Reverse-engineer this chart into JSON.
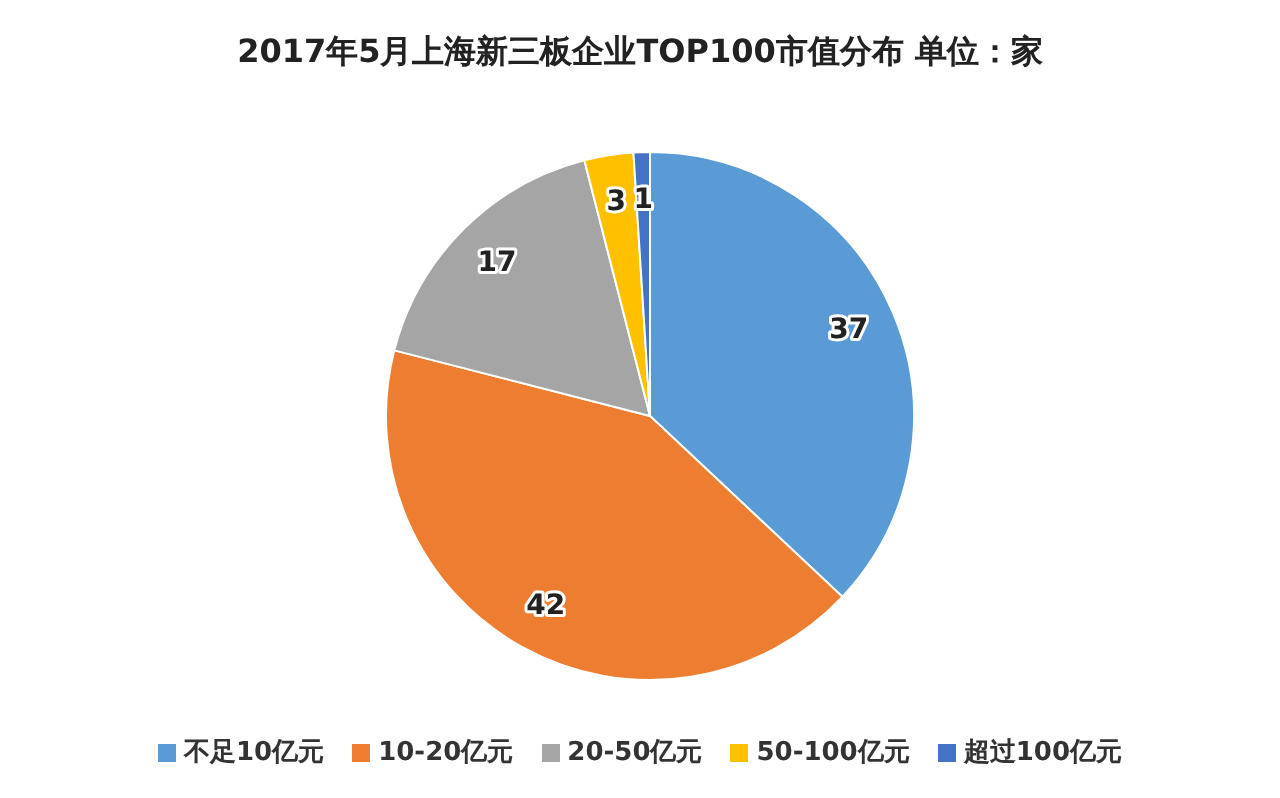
{
  "chart_data": {
    "type": "pie",
    "title": "2017年5月上海新三板企业TOP100市值分布  单位：家",
    "categories": [
      "不足10亿元",
      "10-20亿元",
      "20-50亿元",
      "50-100亿元",
      "超过100亿元"
    ],
    "values": [
      37,
      42,
      17,
      3,
      1
    ],
    "colors": [
      "#5b9bd5",
      "#ed7d31",
      "#a5a5a5",
      "#ffc000",
      "#4472c4"
    ],
    "data_labels": true,
    "legend": "bottom"
  }
}
